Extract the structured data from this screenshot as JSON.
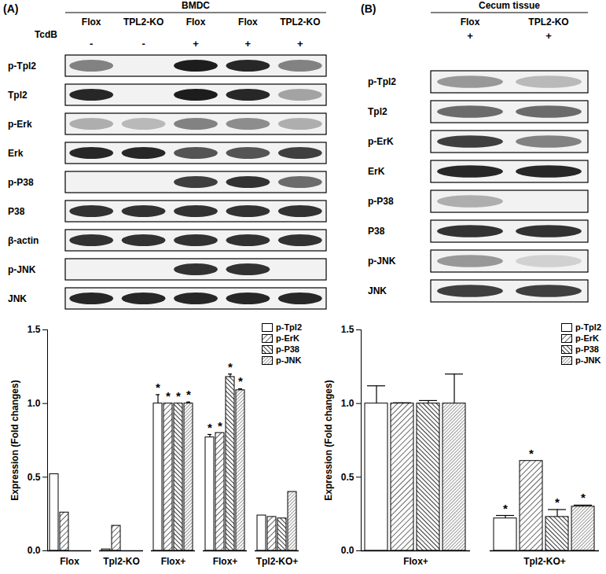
{
  "chart_data": [
    {
      "type": "bar",
      "title": "(A)",
      "categories": [
        "Flox",
        "Tpl2-KO",
        "Flox+",
        "Flox+",
        "Tpl2-KO+"
      ],
      "ylabel": "Expression (Fold changes)",
      "ylim": [
        0,
        1.5
      ],
      "yticks": [
        {
          "value": 0,
          "label": "0.0"
        },
        {
          "value": 0.5,
          "label": "0.5"
        },
        {
          "value": 1,
          "label": "1.0"
        },
        {
          "value": 1.5,
          "label": "1.5"
        }
      ],
      "legend": "top-right",
      "series": [
        {
          "name": "p-Tpl2",
          "color": "#000000",
          "values": [
            0.52,
            0.01,
            1.0,
            0.77,
            0.24
          ],
          "errors": [
            0,
            0,
            0.06,
            0.02,
            0
          ],
          "significance": [
            null,
            null,
            "*",
            "*",
            null
          ]
        },
        {
          "name": "p-ErK",
          "color": "#000000",
          "values": [
            0.26,
            0.17,
            1.0,
            0.8,
            0.23
          ],
          "errors": [
            0,
            0,
            0,
            0,
            0
          ],
          "significance": [
            null,
            null,
            "*",
            "*",
            null
          ]
        },
        {
          "name": "p-P38",
          "color": "#000000",
          "values": [
            0,
            0,
            1.0,
            1.18,
            0.22
          ],
          "errors": [
            0,
            0,
            0,
            0.02,
            0
          ],
          "significance": [
            null,
            null,
            "*",
            "*",
            null
          ]
        },
        {
          "name": "p-JNK",
          "color": "#000000",
          "values": [
            0,
            0,
            1.0,
            1.09,
            0.4
          ],
          "errors": [
            0,
            0,
            0.01,
            0.01,
            0
          ],
          "significance": [
            null,
            null,
            "*",
            "*",
            null
          ]
        }
      ]
    },
    {
      "type": "bar",
      "title": "(B)",
      "categories": [
        "Flox+",
        "Tpl2-KO+"
      ],
      "ylabel": "Expression (Fold changes)",
      "ylim": [
        0,
        1.5
      ],
      "yticks": [
        {
          "value": 0,
          "label": "0.0"
        },
        {
          "value": 0.5,
          "label": "0.5"
        },
        {
          "value": 1,
          "label": "1.0"
        },
        {
          "value": 1.5,
          "label": "1.5"
        }
      ],
      "legend": "top-right",
      "series": [
        {
          "name": "p-Tpl2",
          "color": "#000000",
          "values": [
            1.0,
            0.22
          ],
          "errors": [
            0.12,
            0.02
          ],
          "significance": [
            null,
            "*"
          ]
        },
        {
          "name": "p-ErK",
          "color": "#000000",
          "values": [
            1.0,
            0.61
          ],
          "errors": [
            0.005,
            0
          ],
          "significance": [
            null,
            "*"
          ]
        },
        {
          "name": "p-P38",
          "color": "#000000",
          "values": [
            1.0,
            0.23
          ],
          "errors": [
            0.02,
            0.05
          ],
          "significance": [
            null,
            "*"
          ]
        },
        {
          "name": "p-JNK",
          "color": "#000000",
          "values": [
            1.0,
            0.3
          ],
          "errors": [
            0.2,
            0.01
          ],
          "significance": [
            null,
            "*"
          ]
        }
      ]
    }
  ],
  "blots": [
    {
      "label": "(A)",
      "header": "BMDC",
      "lanes": [
        "Flox",
        "TPL2-KO",
        "Flox",
        "Flox",
        "TPL2-KO"
      ],
      "treatment_label": "TcdB",
      "treatment": [
        "-",
        "-",
        "+",
        "+",
        "+"
      ],
      "rows": [
        {
          "name": "p-Tpl2",
          "bands": [
            0.5,
            0,
            0.95,
            0.9,
            0.5
          ]
        },
        {
          "name": "Tpl2",
          "bands": [
            0.9,
            0,
            0.95,
            0.9,
            0.35
          ]
        },
        {
          "name": "p-Erk",
          "bands": [
            0.3,
            0.25,
            0.5,
            0.45,
            0.3
          ]
        },
        {
          "name": "Erk",
          "bands": [
            0.9,
            0.9,
            0.7,
            0.7,
            0.8
          ]
        },
        {
          "name": "p-P38",
          "bands": [
            0,
            0,
            0.8,
            0.85,
            0.6
          ]
        },
        {
          "name": "P38",
          "bands": [
            0.85,
            0.85,
            0.85,
            0.85,
            0.85
          ]
        },
        {
          "name": "β-actin",
          "bands": [
            0.85,
            0.85,
            0.85,
            0.85,
            0.85
          ]
        },
        {
          "name": "p-JNK",
          "bands": [
            0,
            0,
            0.85,
            0.85,
            0
          ]
        },
        {
          "name": "JNK",
          "bands": [
            0.9,
            0.9,
            0.9,
            0.9,
            0.9
          ]
        }
      ]
    },
    {
      "label": "(B)",
      "header": "Cecum tissue",
      "lanes": [
        "Flox",
        "TPL2-KO"
      ],
      "treatment": [
        "+",
        "+"
      ],
      "rows": [
        {
          "name": "p-Tpl2",
          "bands": [
            0.4,
            0.25
          ]
        },
        {
          "name": "Tpl2",
          "bands": [
            0.6,
            0.6
          ]
        },
        {
          "name": "p-ErK",
          "bands": [
            0.8,
            0.5
          ]
        },
        {
          "name": "ErK",
          "bands": [
            0.9,
            0.9
          ]
        },
        {
          "name": "p-P38",
          "bands": [
            0.3,
            0
          ]
        },
        {
          "name": "P38",
          "bands": [
            0.85,
            0.85
          ]
        },
        {
          "name": "p-JNK",
          "bands": [
            0.4,
            0.15
          ]
        },
        {
          "name": "JNK",
          "bands": [
            0.8,
            0.8
          ]
        }
      ]
    }
  ]
}
